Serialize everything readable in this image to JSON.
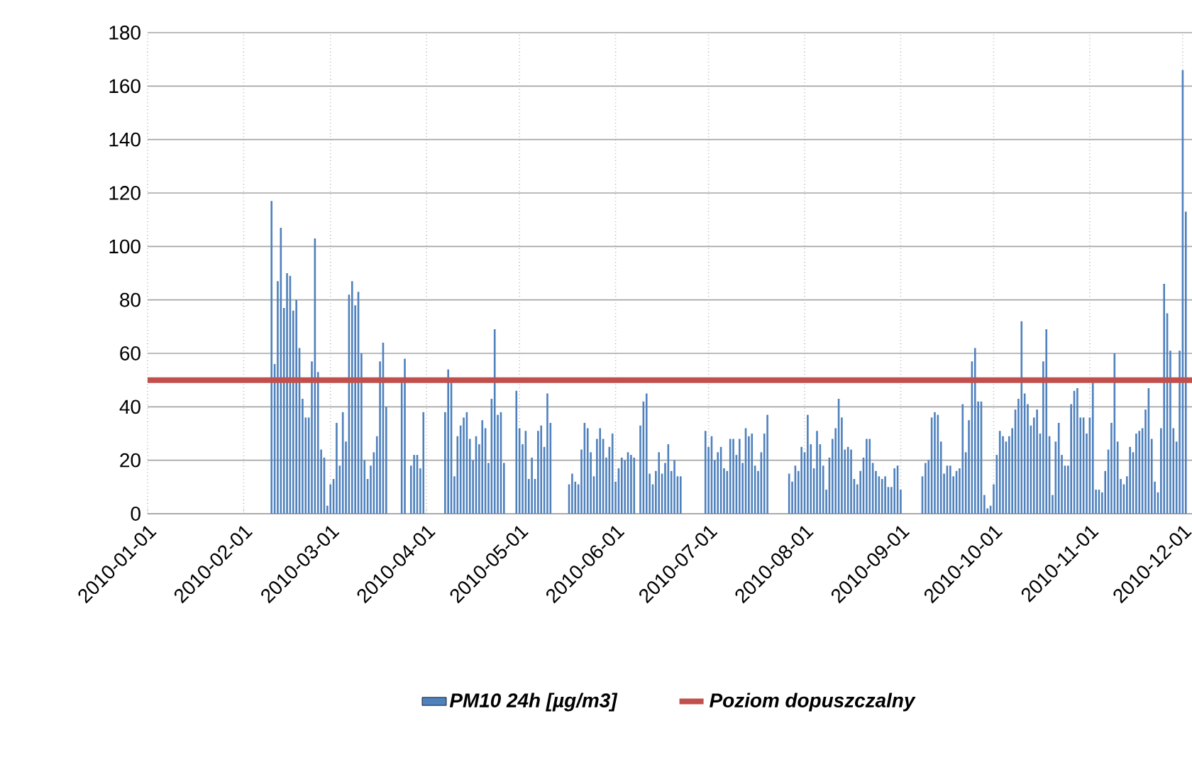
{
  "chart_data": {
    "type": "bar",
    "xlim": [
      "2010-01-01",
      "2010-12-04"
    ],
    "ylim": [
      0,
      180
    ],
    "xticks": [
      "2010-01-01",
      "2010-02-01",
      "2010-03-01",
      "2010-04-01",
      "2010-05-01",
      "2010-06-01",
      "2010-07-01",
      "2010-08-01",
      "2010-09-01",
      "2010-10-01",
      "2010-11-01",
      "2010-12-01"
    ],
    "yticks": [
      0,
      20,
      40,
      60,
      80,
      100,
      120,
      140,
      160,
      180
    ],
    "grid": true,
    "legend": "bottom",
    "x": [
      "2010-02-10",
      "2010-02-11",
      "2010-02-12",
      "2010-02-13",
      "2010-02-14",
      "2010-02-15",
      "2010-02-16",
      "2010-02-17",
      "2010-02-18",
      "2010-02-19",
      "2010-02-20",
      "2010-02-21",
      "2010-02-22",
      "2010-02-23",
      "2010-02-24",
      "2010-02-25",
      "2010-02-26",
      "2010-02-27",
      "2010-02-28",
      "2010-03-01",
      "2010-03-02",
      "2010-03-03",
      "2010-03-04",
      "2010-03-05",
      "2010-03-06",
      "2010-03-07",
      "2010-03-08",
      "2010-03-09",
      "2010-03-10",
      "2010-03-11",
      "2010-03-12",
      "2010-03-13",
      "2010-03-14",
      "2010-03-15",
      "2010-03-16",
      "2010-03-17",
      "2010-03-18",
      "2010-03-19",
      "2010-03-20",
      "2010-03-21",
      "2010-03-22",
      "2010-03-23",
      "2010-03-24",
      "2010-03-25",
      "2010-03-26",
      "2010-03-27",
      "2010-03-28",
      "2010-03-29",
      "2010-03-30",
      "2010-03-31",
      "2010-04-01",
      "2010-04-02",
      "2010-04-03",
      "2010-04-04",
      "2010-04-05",
      "2010-04-06",
      "2010-04-07",
      "2010-04-08",
      "2010-04-09",
      "2010-04-10",
      "2010-04-11",
      "2010-04-12",
      "2010-04-13",
      "2010-04-14",
      "2010-04-15",
      "2010-04-16",
      "2010-04-17",
      "2010-04-18",
      "2010-04-19",
      "2010-04-20",
      "2010-04-21",
      "2010-04-22",
      "2010-04-23",
      "2010-04-24",
      "2010-04-25",
      "2010-04-26",
      "2010-04-27",
      "2010-04-28",
      "2010-04-29",
      "2010-04-30",
      "2010-05-01",
      "2010-05-02",
      "2010-05-03",
      "2010-05-04",
      "2010-05-05",
      "2010-05-06",
      "2010-05-07",
      "2010-05-08",
      "2010-05-09",
      "2010-05-10",
      "2010-05-11",
      "2010-05-12",
      "2010-05-13",
      "2010-05-14",
      "2010-05-15",
      "2010-05-16",
      "2010-05-17",
      "2010-05-18",
      "2010-05-19",
      "2010-05-20",
      "2010-05-21",
      "2010-05-22",
      "2010-05-23",
      "2010-05-24",
      "2010-05-25",
      "2010-05-26",
      "2010-05-27",
      "2010-05-28",
      "2010-05-29",
      "2010-05-30",
      "2010-05-31",
      "2010-06-01",
      "2010-06-02",
      "2010-06-03",
      "2010-06-04",
      "2010-06-05",
      "2010-06-06",
      "2010-06-07",
      "2010-06-08",
      "2010-06-09",
      "2010-06-10",
      "2010-06-11",
      "2010-06-12",
      "2010-06-13",
      "2010-06-14",
      "2010-06-15",
      "2010-06-16",
      "2010-06-17",
      "2010-06-18",
      "2010-06-19",
      "2010-06-20",
      "2010-06-21",
      "2010-06-22",
      "2010-06-23",
      "2010-06-24",
      "2010-06-25",
      "2010-06-26",
      "2010-06-27",
      "2010-06-28",
      "2010-06-29",
      "2010-06-30",
      "2010-07-01",
      "2010-07-02",
      "2010-07-03",
      "2010-07-04",
      "2010-07-05",
      "2010-07-06",
      "2010-07-07",
      "2010-07-08",
      "2010-07-09",
      "2010-07-10",
      "2010-07-11",
      "2010-07-12",
      "2010-07-13",
      "2010-07-14",
      "2010-07-15",
      "2010-07-16",
      "2010-07-17",
      "2010-07-18",
      "2010-07-19",
      "2010-07-20",
      "2010-07-21",
      "2010-07-22",
      "2010-07-23",
      "2010-07-24",
      "2010-07-25",
      "2010-07-26",
      "2010-07-27",
      "2010-07-28",
      "2010-07-29",
      "2010-07-30",
      "2010-07-31",
      "2010-08-01",
      "2010-08-02",
      "2010-08-03",
      "2010-08-04",
      "2010-08-05",
      "2010-08-06",
      "2010-08-07",
      "2010-08-08",
      "2010-08-09",
      "2010-08-10",
      "2010-08-11",
      "2010-08-12",
      "2010-08-13",
      "2010-08-14",
      "2010-08-15",
      "2010-08-16",
      "2010-08-17",
      "2010-08-18",
      "2010-08-19",
      "2010-08-20",
      "2010-08-21",
      "2010-08-22",
      "2010-08-23",
      "2010-08-24",
      "2010-08-25",
      "2010-08-26",
      "2010-08-27",
      "2010-08-28",
      "2010-08-29",
      "2010-08-30",
      "2010-08-31",
      "2010-09-01",
      "2010-09-02",
      "2010-09-03",
      "2010-09-04",
      "2010-09-05",
      "2010-09-06",
      "2010-09-07",
      "2010-09-08",
      "2010-09-09",
      "2010-09-10",
      "2010-09-11",
      "2010-09-12",
      "2010-09-13",
      "2010-09-14",
      "2010-09-15",
      "2010-09-16",
      "2010-09-17",
      "2010-09-18",
      "2010-09-19",
      "2010-09-20",
      "2010-09-21",
      "2010-09-22",
      "2010-09-23",
      "2010-09-24",
      "2010-09-25",
      "2010-09-26",
      "2010-09-27",
      "2010-09-28",
      "2010-09-29",
      "2010-09-30",
      "2010-10-01",
      "2010-10-02",
      "2010-10-03",
      "2010-10-04",
      "2010-10-05",
      "2010-10-06",
      "2010-10-07",
      "2010-10-08",
      "2010-10-09",
      "2010-10-10",
      "2010-10-11",
      "2010-10-12",
      "2010-10-13",
      "2010-10-14",
      "2010-10-15",
      "2010-10-16",
      "2010-10-17",
      "2010-10-18",
      "2010-10-19",
      "2010-10-20",
      "2010-10-21",
      "2010-10-22",
      "2010-10-23",
      "2010-10-24",
      "2010-10-25",
      "2010-10-26",
      "2010-10-27",
      "2010-10-28",
      "2010-10-29",
      "2010-10-30",
      "2010-10-31",
      "2010-11-01",
      "2010-11-02",
      "2010-11-03",
      "2010-11-04",
      "2010-11-05",
      "2010-11-06",
      "2010-11-07",
      "2010-11-08",
      "2010-11-09",
      "2010-11-10",
      "2010-11-11",
      "2010-11-12",
      "2010-11-13",
      "2010-11-14",
      "2010-11-15",
      "2010-11-16",
      "2010-11-17",
      "2010-11-18",
      "2010-11-19",
      "2010-11-20",
      "2010-11-21",
      "2010-11-22",
      "2010-11-23",
      "2010-11-24",
      "2010-11-25",
      "2010-11-26",
      "2010-11-27",
      "2010-11-28",
      "2010-11-29",
      "2010-11-30",
      "2010-12-01",
      "2010-12-02"
    ],
    "series": [
      {
        "name": "PM10 24h [µg/m3]",
        "color": "#4f81bd",
        "values": [
          117,
          56,
          87,
          107,
          77,
          90,
          89,
          76,
          80,
          62,
          43,
          36,
          36,
          57,
          103,
          53,
          24,
          21,
          3,
          11,
          13,
          34,
          18,
          38,
          27,
          82,
          87,
          78,
          83,
          60,
          20,
          13,
          18,
          23,
          29,
          57,
          64,
          40,
          null,
          null,
          null,
          null,
          49,
          58,
          null,
          18,
          22,
          22,
          17,
          38,
          null,
          null,
          null,
          null,
          null,
          null,
          38,
          54,
          49,
          14,
          29,
          33,
          36,
          38,
          28,
          20,
          29,
          26,
          35,
          32,
          19,
          43,
          69,
          37,
          38,
          19,
          null,
          null,
          null,
          46,
          32,
          26,
          31,
          13,
          21,
          13,
          31,
          33,
          25,
          45,
          34,
          null,
          null,
          null,
          null,
          null,
          11,
          15,
          12,
          11,
          24,
          34,
          32,
          23,
          14,
          28,
          32,
          28,
          21,
          25,
          30,
          12,
          17,
          21,
          20,
          23,
          22,
          21,
          null,
          33,
          42,
          45,
          15,
          11,
          16,
          23,
          15,
          19,
          26,
          16,
          20,
          14,
          14,
          null,
          null,
          null,
          null,
          null,
          null,
          null,
          31,
          25,
          29,
          20,
          23,
          25,
          17,
          16,
          28,
          28,
          22,
          28,
          19,
          32,
          29,
          30,
          18,
          16,
          23,
          30,
          37,
          null,
          null,
          null,
          null,
          null,
          null,
          15,
          12,
          18,
          16,
          25,
          23,
          37,
          26,
          17,
          31,
          26,
          18,
          9,
          21,
          28,
          32,
          43,
          36,
          24,
          25,
          24,
          13,
          11,
          16,
          21,
          28,
          28,
          19,
          16,
          14,
          13,
          14,
          10,
          10,
          17,
          18,
          9,
          null,
          null,
          null,
          null,
          null,
          null,
          14,
          19,
          20,
          36,
          38,
          37,
          27,
          15,
          18,
          18,
          14,
          16,
          17,
          41,
          23,
          35,
          57,
          62,
          42,
          42,
          7,
          2,
          3,
          11,
          22,
          31,
          29,
          27,
          29,
          32,
          39,
          43,
          72,
          45,
          41,
          33,
          36,
          39,
          30,
          57,
          69,
          29,
          7,
          27,
          34,
          22,
          18,
          18,
          41,
          46,
          47,
          36,
          36,
          30,
          36,
          49,
          9,
          9,
          8,
          16,
          24,
          34,
          60,
          27,
          13,
          11,
          14,
          25,
          23,
          30,
          31,
          32,
          39,
          47,
          28,
          12,
          8,
          32,
          86,
          75,
          61,
          32,
          27,
          61,
          166,
          113
        ]
      }
    ],
    "ref_lines": [
      {
        "axis": "y",
        "value": 50,
        "label": "Poziom dopuszczalny",
        "color": "#c0504d"
      }
    ]
  }
}
